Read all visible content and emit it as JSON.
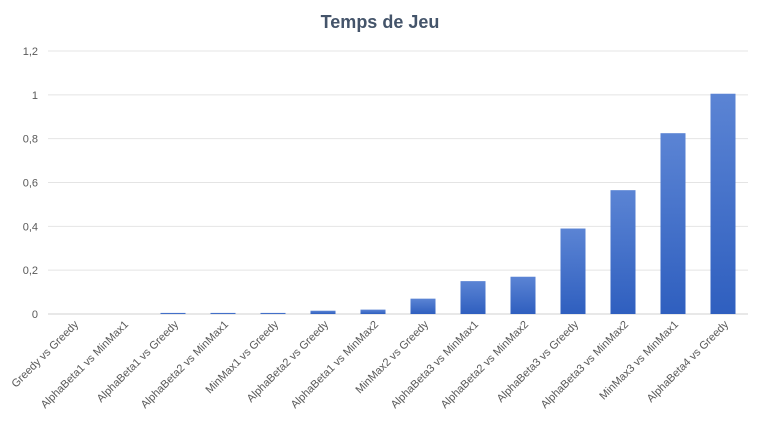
{
  "chart_data": {
    "type": "bar",
    "title": "Temps de Jeu",
    "xlabel": "",
    "ylabel": "",
    "categories": [
      "Greedy vs Greedy",
      "AlphaBeta1 vs MinMax1",
      "AlphaBeta1 vs Greedy",
      "AlphaBeta2 vs MinMax1",
      "MinMax1 vs Greedy",
      "AlphaBeta2 vs Greedy",
      "AlphaBeta1 vs MinMax2",
      "MinMax2 vs Greedy",
      "AlphaBeta3 vs MinMax1",
      "AlphaBeta2 vs MinMax2",
      "AlphaBeta3 vs Greedy",
      "AlphaBeta3 vs MinMax2",
      "MinMax3 vs MinMax1",
      "AlphaBeta4 vs Greedy"
    ],
    "values": [
      0.0,
      0.0,
      0.005,
      0.005,
      0.005,
      0.015,
      0.02,
      0.07,
      0.15,
      0.17,
      0.39,
      0.565,
      0.825,
      1.005
    ],
    "ylim": [
      0,
      1.2
    ],
    "yticks": [
      0,
      0.2,
      0.4,
      0.6,
      0.8,
      1,
      1.2
    ],
    "ytick_labels": [
      "0",
      "0,2",
      "0,4",
      "0,6",
      "0,8",
      "1",
      "1,2"
    ],
    "grid": true,
    "legend": "none",
    "colors": {
      "bar_top": "#5b84d4",
      "bar_bottom": "#2f5fbf"
    }
  }
}
